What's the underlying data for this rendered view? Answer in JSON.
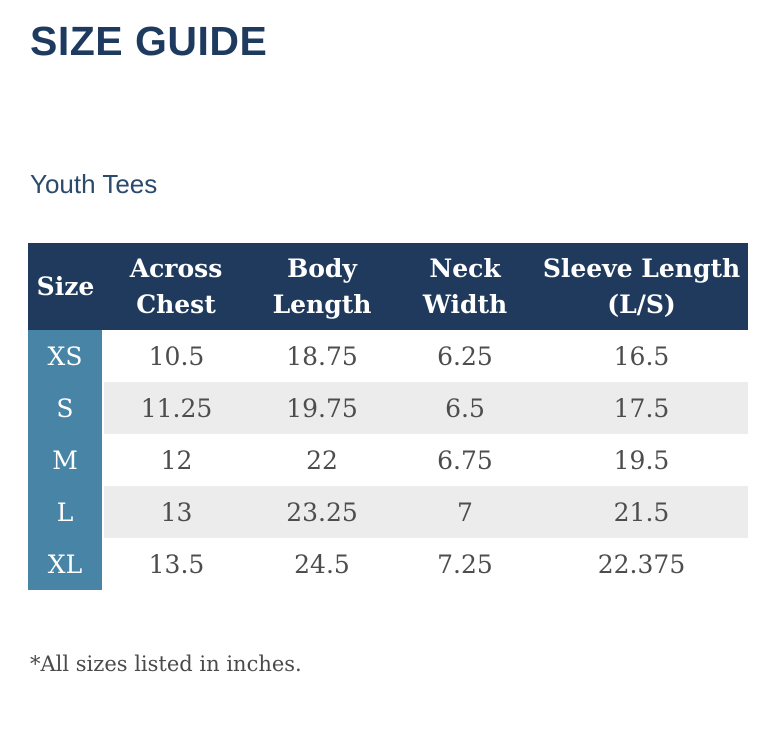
{
  "page_title": "SIZE GUIDE",
  "section_title": "Youth Tees",
  "footnote": "*All sizes listed in inches.",
  "colors": {
    "title_navy": "#1e3a5f",
    "header_navy": "#1f3a5c",
    "size_column_teal": "#4884a5",
    "stripe_gray": "#ececec",
    "body_text_gray": "#4d4d4d"
  },
  "table": {
    "columns": [
      "Size",
      "Across\nChest",
      "Body\nLength",
      "Neck\nWidth",
      "Sleeve Length\n(L/S)"
    ],
    "rows": [
      {
        "size": "XS",
        "values": [
          "10.5",
          "18.75",
          "6.25",
          "16.5"
        ]
      },
      {
        "size": "S",
        "values": [
          "11.25",
          "19.75",
          "6.5",
          "17.5"
        ]
      },
      {
        "size": "M",
        "values": [
          "12",
          "22",
          "6.75",
          "19.5"
        ]
      },
      {
        "size": "L",
        "values": [
          "13",
          "23.25",
          "7",
          "21.5"
        ]
      },
      {
        "size": "XL",
        "values": [
          "13.5",
          "24.5",
          "7.25",
          "22.375"
        ]
      }
    ]
  }
}
